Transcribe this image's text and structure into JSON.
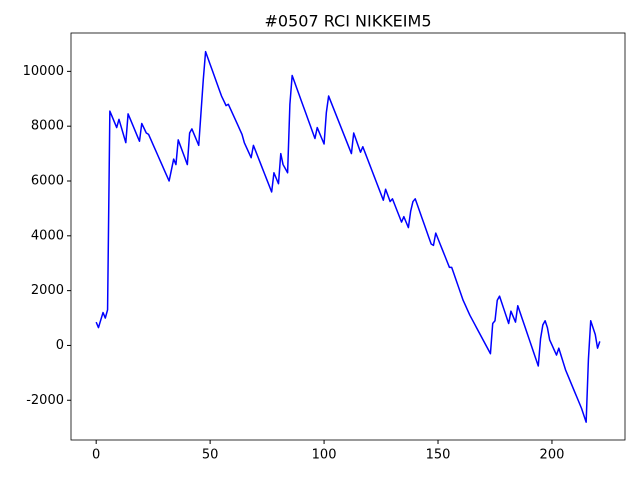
{
  "chart_data": {
    "type": "line",
    "title": "#0507 RCI NIKKEIM5",
    "x": [
      0,
      1,
      2,
      3,
      4,
      5,
      6,
      7,
      8,
      9,
      10,
      11,
      12,
      13,
      14,
      15,
      16,
      17,
      18,
      19,
      20,
      21,
      22,
      23,
      24,
      25,
      26,
      27,
      28,
      29,
      30,
      31,
      32,
      33,
      34,
      35,
      36,
      37,
      38,
      39,
      40,
      41,
      42,
      43,
      44,
      45,
      46,
      47,
      48,
      49,
      50,
      51,
      52,
      53,
      54,
      55,
      56,
      57,
      58,
      59,
      60,
      61,
      62,
      63,
      64,
      65,
      66,
      67,
      68,
      69,
      70,
      71,
      72,
      73,
      74,
      75,
      76,
      77,
      78,
      79,
      80,
      81,
      82,
      83,
      84,
      85,
      86,
      87,
      88,
      89,
      90,
      91,
      92,
      93,
      94,
      95,
      96,
      97,
      98,
      99,
      100,
      101,
      102,
      103,
      104,
      105,
      106,
      107,
      108,
      109,
      110,
      111,
      112,
      113,
      114,
      115,
      116,
      117,
      118,
      119,
      120,
      121,
      122,
      123,
      124,
      125,
      126,
      127,
      128,
      129,
      130,
      131,
      132,
      133,
      134,
      135,
      136,
      137,
      138,
      139,
      140,
      141,
      142,
      143,
      144,
      145,
      146,
      147,
      148,
      149,
      150,
      151,
      152,
      153,
      154,
      155,
      156,
      157,
      158,
      159,
      160,
      161,
      162,
      163,
      164,
      165,
      166,
      167,
      168,
      169,
      170,
      171,
      172,
      173,
      174,
      175,
      176,
      177,
      178,
      179,
      180,
      181,
      182,
      183,
      184,
      185,
      186,
      187,
      188,
      189,
      190,
      191,
      192,
      193,
      194,
      195,
      196,
      197,
      198,
      199,
      200,
      201,
      202,
      203,
      204,
      205,
      206,
      207,
      208,
      209,
      210,
      211,
      212,
      213,
      214,
      215,
      216,
      217,
      218,
      219,
      220,
      221
    ],
    "series": [
      {
        "color": "#0000ff",
        "values": [
          850,
          650,
          925,
          1200,
          1000,
          1300,
          8550,
          8350,
          8150,
          7950,
          8250,
          7967,
          7683,
          7400,
          8450,
          8250,
          8050,
          7850,
          7650,
          7450,
          8100,
          7925,
          7750,
          7700,
          7511,
          7322,
          7133,
          6944,
          6756,
          6567,
          6378,
          6189,
          6000,
          6400,
          6800,
          6600,
          7500,
          7275,
          7050,
          6825,
          6600,
          7750,
          7900,
          7700,
          7500,
          7300,
          8500,
          9700,
          10720,
          10489,
          10257,
          10026,
          9794,
          9563,
          9331,
          9100,
          8925,
          8750,
          8800,
          8617,
          8433,
          8250,
          8067,
          7883,
          7700,
          7400,
          7217,
          7033,
          6850,
          7300,
          7088,
          6875,
          6663,
          6450,
          6238,
          6025,
          5813,
          5600,
          6300,
          6100,
          5900,
          7000,
          6600,
          6450,
          6300,
          8800,
          9850,
          9620,
          9390,
          9160,
          8930,
          8700,
          8470,
          8240,
          8010,
          7780,
          7550,
          7950,
          7750,
          7550,
          7350,
          8500,
          9100,
          8890,
          8680,
          8470,
          8260,
          8050,
          7840,
          7630,
          7420,
          7210,
          7000,
          7750,
          7517,
          7283,
          7050,
          7250,
          7033,
          6817,
          6600,
          6383,
          6167,
          5950,
          5733,
          5517,
          5300,
          5700,
          5475,
          5250,
          5350,
          5138,
          4925,
          4713,
          4500,
          4700,
          4500,
          4300,
          4900,
          5250,
          5350,
          5114,
          4879,
          4643,
          4407,
          4171,
          3936,
          3700,
          3650,
          4100,
          3892,
          3683,
          3475,
          3267,
          3058,
          2850,
          2850,
          2610,
          2370,
          2130,
          1890,
          1650,
          1467,
          1283,
          1100,
          944,
          789,
          633,
          478,
          322,
          167,
          11,
          -144,
          -300,
          800,
          900,
          1650,
          1800,
          1550,
          1300,
          1050,
          800,
          1250,
          1050,
          850,
          1450,
          1206,
          961,
          717,
          472,
          228,
          -17,
          -261,
          -506,
          -750,
          250,
          750,
          900,
          650,
          200,
          17,
          -167,
          -350,
          -100,
          -367,
          -633,
          -900,
          -1100,
          -1300,
          -1500,
          -1700,
          -1900,
          -2100,
          -2300,
          -2550,
          -2800,
          -500,
          900,
          650,
          400,
          -100,
          150
        ]
      }
    ],
    "xlim": [
      -11.05,
      232.05
    ],
    "xticks": [
      0,
      50,
      100,
      150,
      200
    ],
    "ylim": [
      -3450,
      11400
    ],
    "yticks": [
      -2000,
      0,
      2000,
      4000,
      6000,
      8000,
      10000
    ],
    "grid": false
  }
}
